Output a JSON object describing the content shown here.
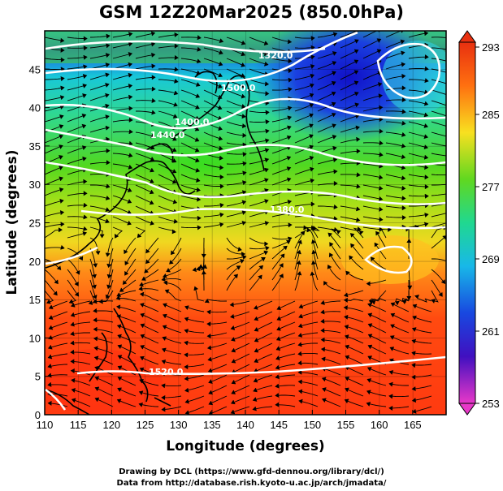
{
  "title": "GSM 12Z20Mar2025 (850.0hPa)",
  "xaxis": {
    "label": "Longitude (degrees)",
    "ticks": [
      "110",
      "115",
      "120",
      "125",
      "130",
      "135",
      "140",
      "145",
      "150",
      "155",
      "160",
      "165"
    ],
    "range": [
      110,
      170
    ]
  },
  "yaxis": {
    "label": "Latitude (degrees)",
    "ticks": [
      "0",
      "5",
      "10",
      "15",
      "20",
      "25",
      "30",
      "35",
      "40",
      "45"
    ],
    "range": [
      0,
      50
    ]
  },
  "colorbar": {
    "ticks": [
      "293",
      "285",
      "277",
      "269",
      "261",
      "253"
    ],
    "min": 253,
    "max": 293
  },
  "contour_labels": [
    "1320.0",
    "1380.0",
    "1400.0",
    "1440.0",
    "1500.0",
    "1520.0"
  ],
  "credits": {
    "line1": "Drawing by DCL (https://www.gfd-dennou.org/library/dcl/)",
    "line2": "Data from http://database.rish.kyoto-u.ac.jp/arch/jmadata/"
  },
  "colors": {
    "warm": "#ff3a10",
    "cold": "#1a2ad8",
    "mid_green": "#40d020",
    "cyan": "#18c8e0",
    "contour": "#ffffff"
  }
}
